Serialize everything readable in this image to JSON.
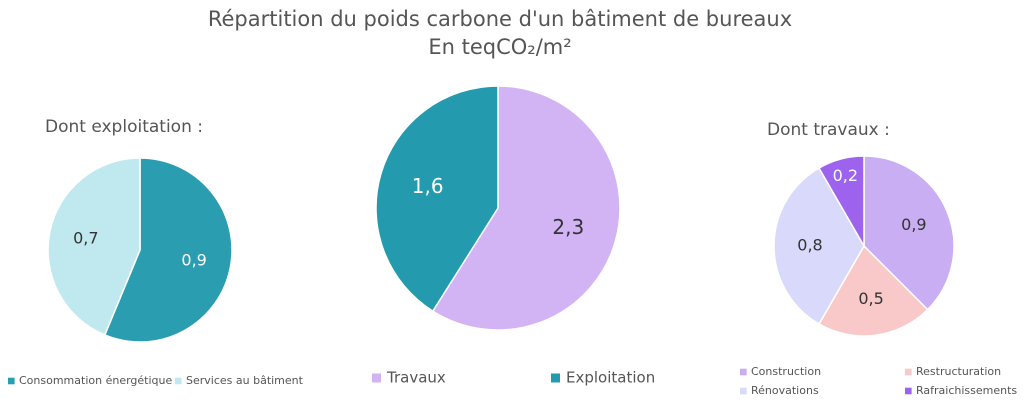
{
  "title": "Répartition du poids carbone d'un bâtiment de bureaux",
  "subtitle": "En teqCO₂/m²",
  "chart_data": [
    {
      "type": "pie",
      "title": "Dont exploitation :",
      "categories": [
        "Consommation énergétique",
        "Services au bâtiment"
      ],
      "values": [
        0.9,
        0.7
      ],
      "value_labels": [
        "0,9",
        "0,7"
      ],
      "colors": [
        "#2a9db0",
        "#c0e9ef"
      ]
    },
    {
      "type": "pie",
      "categories": [
        "Travaux",
        "Exploitation"
      ],
      "values": [
        2.3,
        1.6
      ],
      "value_labels": [
        "2,3",
        "1,6"
      ],
      "colors": [
        "#d2b4f5",
        "#239aad"
      ]
    },
    {
      "type": "pie",
      "title": "Dont travaux :",
      "categories": [
        "Construction",
        "Restructuration",
        "Rénovations",
        "Rafraichissements"
      ],
      "values": [
        0.9,
        0.5,
        0.8,
        0.2
      ],
      "value_labels": [
        "0,9",
        "0,5",
        "0,8",
        "0,2"
      ],
      "colors": [
        "#c9aef3",
        "#f9c9c9",
        "#d9d9fb",
        "#9d63ef"
      ]
    }
  ]
}
